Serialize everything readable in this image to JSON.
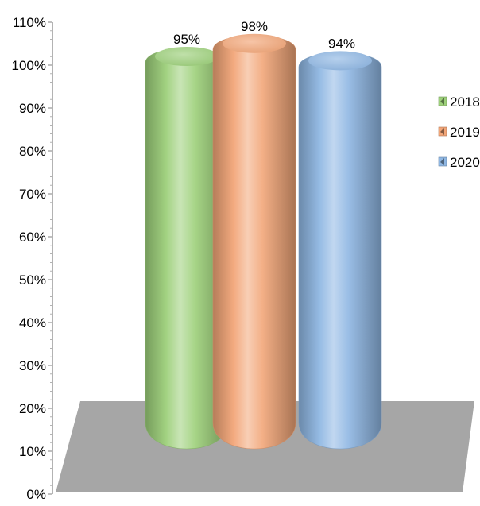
{
  "chart_data": {
    "type": "bar",
    "style": "3d-cylinder",
    "categories": [
      ""
    ],
    "series": [
      {
        "name": "2018",
        "values": [
          95
        ],
        "label": "95%",
        "color": "#9dd07a"
      },
      {
        "name": "2019",
        "values": [
          98
        ],
        "label": "98%",
        "color": "#f2a678"
      },
      {
        "name": "2020",
        "values": [
          94
        ],
        "label": "94%",
        "color": "#8fb7e3"
      }
    ],
    "ylim": [
      0,
      110
    ],
    "yticks": [
      {
        "value": 0,
        "label": "0%"
      },
      {
        "value": 10,
        "label": "10%"
      },
      {
        "value": 20,
        "label": "20%"
      },
      {
        "value": 30,
        "label": "30%"
      },
      {
        "value": 40,
        "label": "40%"
      },
      {
        "value": 50,
        "label": "50%"
      },
      {
        "value": 60,
        "label": "60%"
      },
      {
        "value": 70,
        "label": "70%"
      },
      {
        "value": 80,
        "label": "80%"
      },
      {
        "value": 90,
        "label": "90%"
      },
      {
        "value": 100,
        "label": "100%"
      },
      {
        "value": 110,
        "label": "110%"
      }
    ],
    "floor_color": "#a6a6a6",
    "grid": false,
    "legend_position": "right"
  }
}
